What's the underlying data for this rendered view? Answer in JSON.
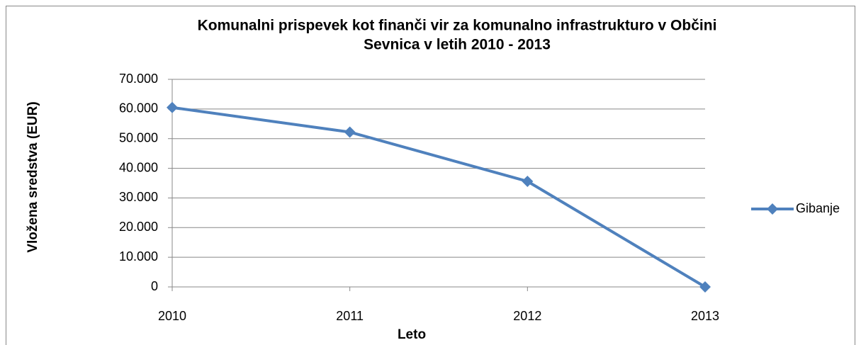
{
  "chart_data": {
    "type": "line",
    "title": [
      "Komunalni prispevek kot finanči vir za komunalno infrastrukturo v Občini",
      "Sevnica v letih 2010 - 2013"
    ],
    "x_label": "Leto",
    "y_label": "Vložena sredstva (EUR)",
    "categories": [
      "2010",
      "2011",
      "2012",
      "2013"
    ],
    "series": [
      {
        "name": "Gibanje",
        "color": "#4f81bd",
        "values": [
          60500,
          52200,
          35600,
          0
        ]
      }
    ],
    "ylim": [
      0,
      70000
    ],
    "yticks": [
      0,
      {
        "value": 10000,
        "label": "10.000"
      },
      {
        "value": 20000,
        "label": "20.000"
      },
      {
        "value": 30000,
        "label": "30.000"
      },
      {
        "value": 40000,
        "label": "40.000"
      },
      {
        "value": 50000,
        "label": "50.000"
      },
      {
        "value": 60000,
        "label": "60.000"
      },
      {
        "value": 70000,
        "label": "70.000"
      }
    ],
    "grid": true,
    "legend": "right"
  }
}
